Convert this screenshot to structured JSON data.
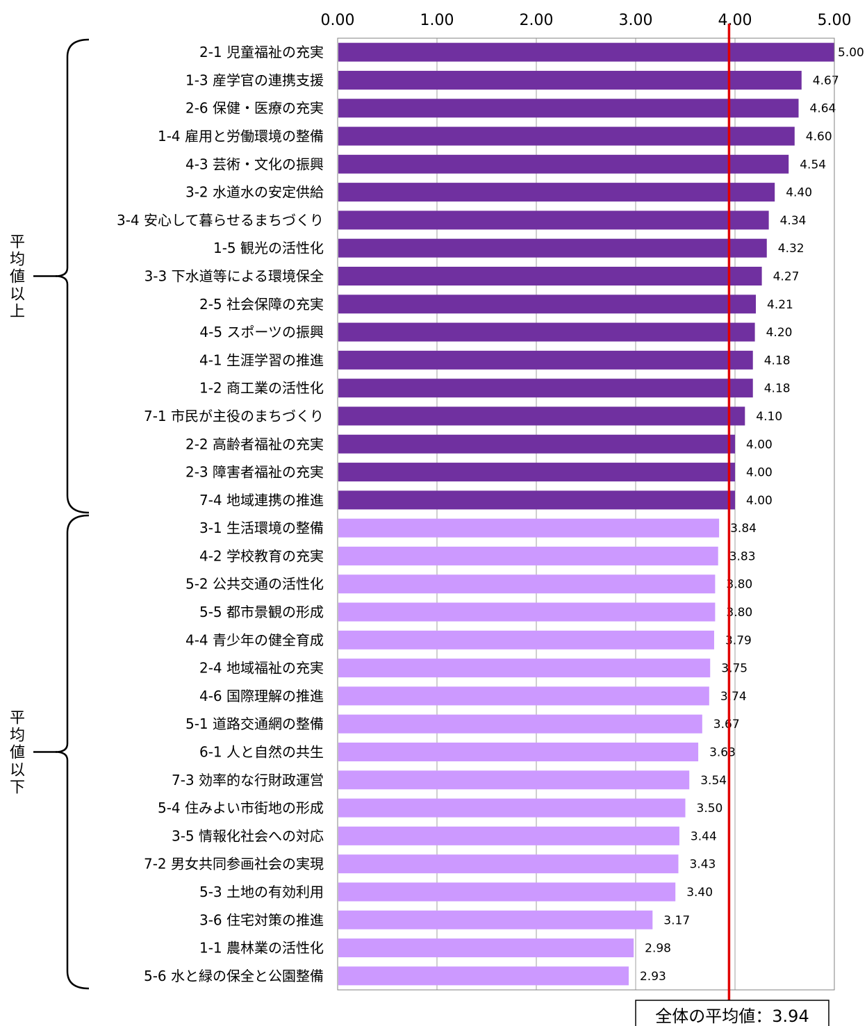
{
  "chart_data": {
    "type": "bar",
    "orientation": "horizontal",
    "xlim": [
      0,
      5
    ],
    "x_ticks": [
      "0.00",
      "1.00",
      "2.00",
      "3.00",
      "4.00",
      "5.00"
    ],
    "grid": true,
    "categories": [
      "2-1 児童福祉の充実",
      "1-3 産学官の連携支援",
      "2-6 保健・医療の充実",
      "1-4 雇用と労働環境の整備",
      "4-3 芸術・文化の振興",
      "3-2 水道水の安定供給",
      "3-4 安心して暮らせるまちづくり",
      "1-5 観光の活性化",
      "3-3 下水道等による環境保全",
      "2-5 社会保障の充実",
      "4-5 スポーツの振興",
      "4-1 生涯学習の推進",
      "1-2 商工業の活性化",
      "7-1 市民が主役のまちづくり",
      "2-2 高齢者福祉の充実",
      "2-3 障害者福祉の充実",
      "7-4 地域連携の推進",
      "3-1 生活環境の整備",
      "4-2 学校教育の充実",
      "5-2 公共交通の活性化",
      "5-5 都市景観の形成",
      "4-4 青少年の健全育成",
      "2-4 地域福祉の充実",
      "4-6 国際理解の推進",
      "5-1 道路交通網の整備",
      "6-1 人と自然の共生",
      "7-3 効率的な行財政運営",
      "5-4 住みよい市街地の形成",
      "3-5 情報化社会への対応",
      "7-2 男女共同参画社会の実現",
      "5-3 土地の有効利用",
      "3-6 住宅対策の推進",
      "1-1 農林業の活性化",
      "5-6 水と緑の保全と公園整備"
    ],
    "values": [
      5.0,
      4.67,
      4.64,
      4.6,
      4.54,
      4.4,
      4.34,
      4.32,
      4.27,
      4.21,
      4.2,
      4.18,
      4.18,
      4.1,
      4.0,
      4.0,
      4.0,
      3.84,
      3.83,
      3.8,
      3.8,
      3.79,
      3.75,
      3.74,
      3.67,
      3.63,
      3.54,
      3.5,
      3.44,
      3.43,
      3.4,
      3.17,
      2.98,
      2.93
    ],
    "data_labels": [
      "5.00",
      "4.67",
      "4.64",
      "4.60",
      "4.54",
      "4.40",
      "4.34",
      "4.32",
      "4.27",
      "4.21",
      "4.20",
      "4.18",
      "4.18",
      "4.10",
      "4.00",
      "4.00",
      "4.00",
      "3.84",
      "3.83",
      "3.80",
      "3.80",
      "3.79",
      "3.75",
      "3.74",
      "3.67",
      "3.63",
      "3.54",
      "3.50",
      "3.44",
      "3.43",
      "3.40",
      "3.17",
      "2.98",
      "2.93"
    ],
    "above_average_count": 17,
    "colors": {
      "above": "#7030a0",
      "below": "#cc99ff",
      "average_line": "#e00000",
      "grid": "#bfbfbf"
    },
    "average": {
      "value": 3.94,
      "label": "全体の平均値：3.94"
    },
    "groups": [
      {
        "label": "平均値以上"
      },
      {
        "label": "平均値以下"
      }
    ]
  }
}
